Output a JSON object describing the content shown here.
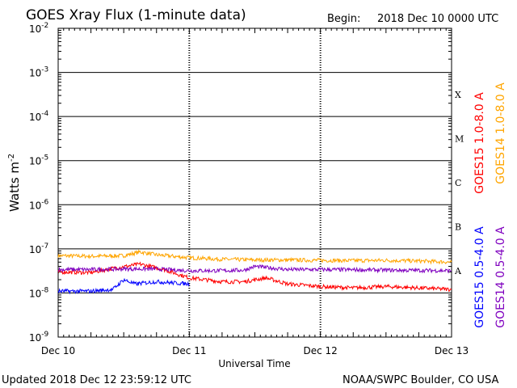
{
  "header": {
    "title": "GOES Xray Flux (1-minute data)",
    "begin_label": "Begin:",
    "begin_value": "2018 Dec 10 0000 UTC"
  },
  "footer": {
    "updated": "Updated 2018 Dec 12 23:59:12 UTC",
    "credit": "NOAA/SWPC Boulder, CO USA"
  },
  "colors": {
    "goes15_long": "#ff0000",
    "goes14_long": "#ffa500",
    "goes15_short": "#0000ff",
    "goes14_short": "#7f00bf"
  },
  "chart_data": {
    "type": "line",
    "title": "GOES Xray Flux (1-minute data)",
    "xlabel": "Universal Time",
    "ylabel": "Watts m",
    "ylabel_sup": "-2",
    "y_scale": "log",
    "ylim": [
      1e-09,
      0.01
    ],
    "grid": true,
    "x_ticks": [
      "Dec 10",
      "Dec 11",
      "Dec 12",
      "Dec 13"
    ],
    "xlim": [
      "2018-12-10T00:00",
      "2018-12-13T00:00"
    ],
    "y_ticks": [
      {
        "base": "10",
        "exp": "-9"
      },
      {
        "base": "10",
        "exp": "-8"
      },
      {
        "base": "10",
        "exp": "-7"
      },
      {
        "base": "10",
        "exp": "-6"
      },
      {
        "base": "10",
        "exp": "-5"
      },
      {
        "base": "10",
        "exp": "-4"
      },
      {
        "base": "10",
        "exp": "-3"
      },
      {
        "base": "10",
        "exp": "-2"
      }
    ],
    "flare_classes": [
      {
        "label": "A",
        "min_exp": -8
      },
      {
        "label": "B",
        "min_exp": -7
      },
      {
        "label": "C",
        "min_exp": -6
      },
      {
        "label": "M",
        "min_exp": -5
      },
      {
        "label": "X",
        "min_exp": -4
      }
    ],
    "series": [
      {
        "name": "GOES14 1.0-8.0 A",
        "color": "#ffa500",
        "x": [
          "2018-12-10T00:00",
          "2018-12-10T06:00",
          "2018-12-10T12:00",
          "2018-12-10T15:00",
          "2018-12-10T18:00",
          "2018-12-11T00:00",
          "2018-12-11T06:00",
          "2018-12-11T12:00",
          "2018-12-11T18:00",
          "2018-12-12T00:00",
          "2018-12-12T06:00",
          "2018-12-12T12:00",
          "2018-12-12T18:00",
          "2018-12-13T00:00"
        ],
        "values": [
          7e-08,
          6.8e-08,
          7e-08,
          8.5e-08,
          7.3e-08,
          6.3e-08,
          5.8e-08,
          5.6e-08,
          5.6e-08,
          5.5e-08,
          5.4e-08,
          5.5e-08,
          5.3e-08,
          5e-08
        ]
      },
      {
        "name": "GOES15 1.0-8.0 A",
        "color": "#ff0000",
        "x": [
          "2018-12-10T00:00",
          "2018-12-10T06:00",
          "2018-12-10T10:00",
          "2018-12-10T15:00",
          "2018-12-10T19:00",
          "2018-12-11T00:00",
          "2018-12-11T06:00",
          "2018-12-11T10:00",
          "2018-12-11T14:00",
          "2018-12-11T18:00",
          "2018-12-12T00:00",
          "2018-12-12T06:00",
          "2018-12-12T12:00",
          "2018-12-12T18:00",
          "2018-12-13T00:00"
        ],
        "values": [
          3e-08,
          2.9e-08,
          3.6e-08,
          4.5e-08,
          3.5e-08,
          2.2e-08,
          1.8e-08,
          1.8e-08,
          2.2e-08,
          1.6e-08,
          1.4e-08,
          1.3e-08,
          1.4e-08,
          1.3e-08,
          1.2e-08
        ]
      },
      {
        "name": "GOES14 0.5-4.0 A",
        "color": "#7f00bf",
        "x": [
          "2018-12-10T00:00",
          "2018-12-10T06:00",
          "2018-12-10T12:00",
          "2018-12-10T18:00",
          "2018-12-11T00:00",
          "2018-12-11T06:00",
          "2018-12-11T10:00",
          "2018-12-11T12:00",
          "2018-12-11T18:00",
          "2018-12-12T00:00",
          "2018-12-12T12:00",
          "2018-12-13T00:00"
        ],
        "values": [
          3.4e-08,
          3.4e-08,
          3.5e-08,
          3.5e-08,
          3.2e-08,
          3.2e-08,
          3.3e-08,
          4e-08,
          3.4e-08,
          3.4e-08,
          3.3e-08,
          3.2e-08
        ]
      },
      {
        "name": "GOES15 0.5-4.0 A",
        "color": "#0000ff",
        "x": [
          "2018-12-10T00:00",
          "2018-12-10T06:00",
          "2018-12-10T10:00",
          "2018-12-10T12:00",
          "2018-12-10T14:00",
          "2018-12-10T18:00",
          "2018-12-11T00:00"
        ],
        "values": [
          1.1e-08,
          1.1e-08,
          1.2e-08,
          2e-08,
          1.6e-08,
          1.8e-08,
          1.6e-08
        ]
      }
    ]
  }
}
